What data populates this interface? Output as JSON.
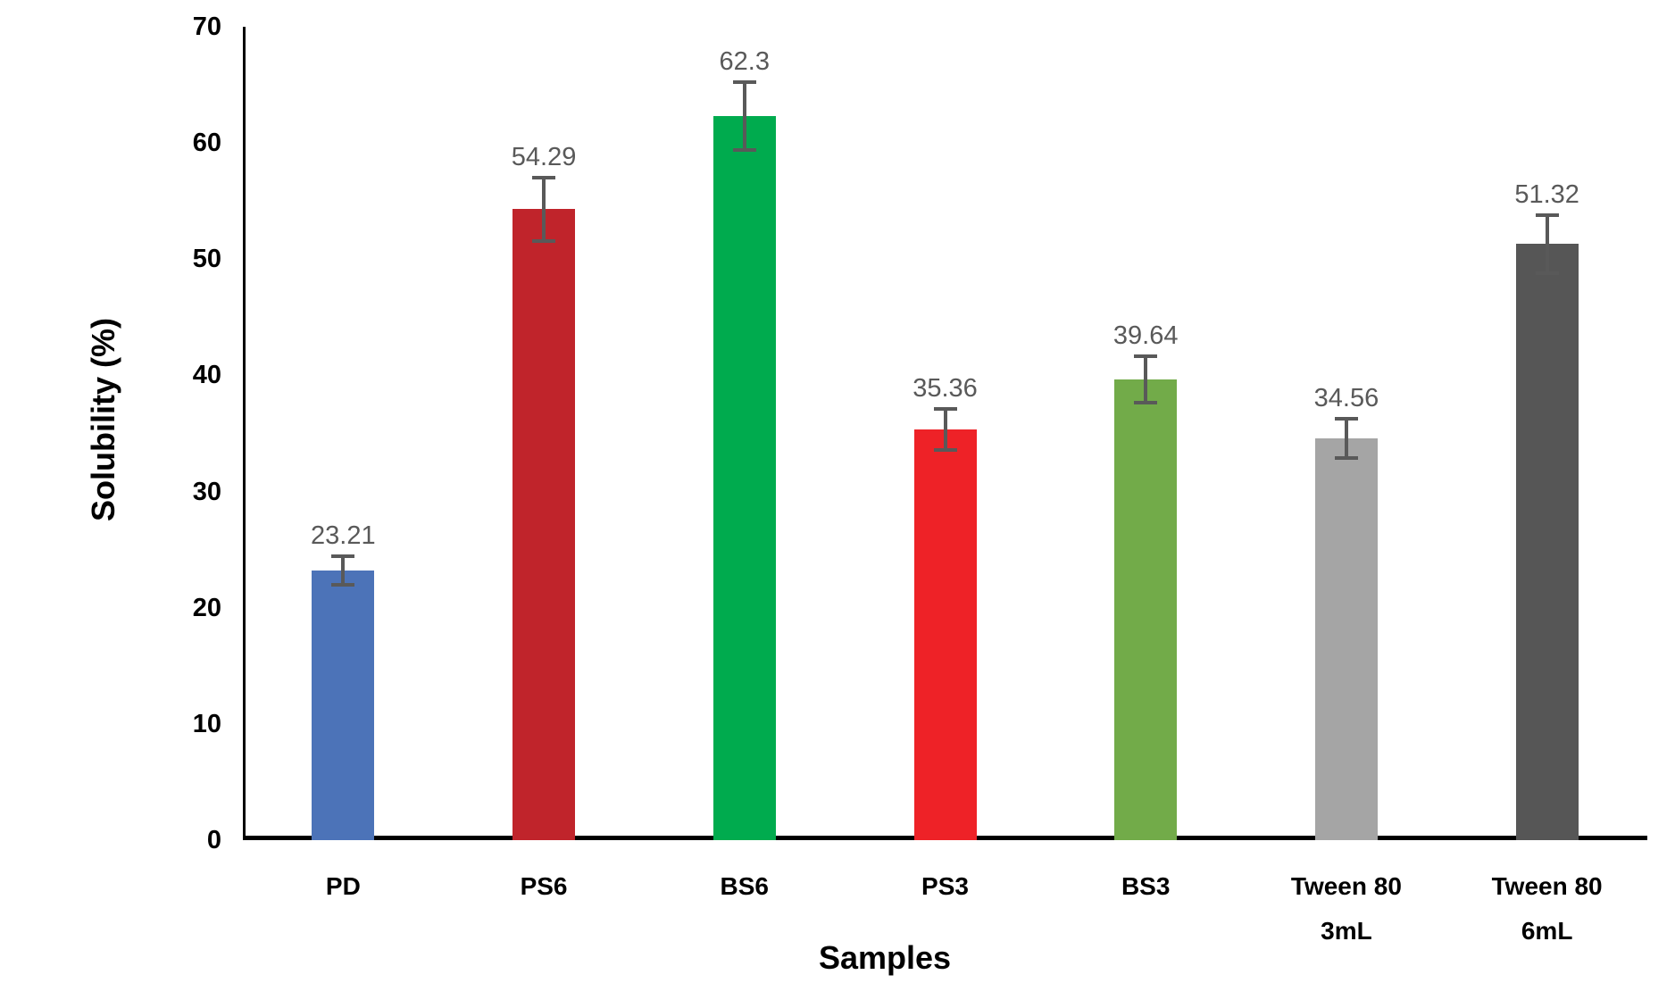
{
  "chart_data": {
    "type": "bar",
    "title": "",
    "xlabel": "Samples",
    "ylabel": "Solubility (%)",
    "categories": [
      "PD",
      "PS6",
      "BS6",
      "PS3",
      "BS3",
      "Tween 80\n3mL",
      "Tween 80\n6mL"
    ],
    "values": [
      23.21,
      54.29,
      62.3,
      35.36,
      39.64,
      34.56,
      51.32
    ],
    "data_labels": [
      "23.21",
      "54.29",
      "62.3",
      "35.36",
      "39.64",
      "34.56",
      "51.32"
    ],
    "error_bars_plus_minus": [
      1.2,
      2.7,
      2.9,
      1.75,
      2.0,
      1.7,
      2.5
    ],
    "bar_colors": [
      "#4C73B8",
      "#C0242B",
      "#00AB4E",
      "#EE2227",
      "#72AB49",
      "#A5A5A5",
      "#565656"
    ],
    "ylim": [
      0,
      70
    ],
    "yticks": [
      0,
      10,
      20,
      30,
      40,
      50,
      60,
      70
    ],
    "grid": false,
    "legend": "none",
    "colors": {
      "error_bar": "#595959",
      "data_label": "#595959",
      "axis": "#000000",
      "tick_label": "#000000",
      "background": "#ffffff"
    }
  }
}
